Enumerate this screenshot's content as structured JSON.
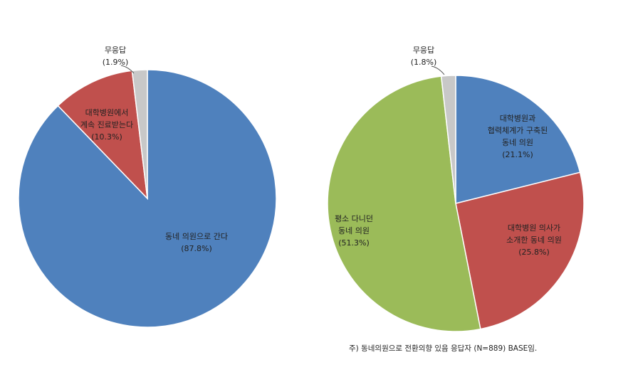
{
  "chart_data": [
    {
      "type": "pie",
      "slices": [
        {
          "label": [
            "동네 의원으로 간다",
            "(87.8%)"
          ],
          "value": 87.8,
          "color": "#4f81bd"
        },
        {
          "label": [
            "대학병원에서",
            "계속 진료받는다",
            "(10.3%)"
          ],
          "value": 10.3,
          "color": "#c0504d"
        },
        {
          "label": [
            "무응답",
            "(1.9%)"
          ],
          "value": 1.9,
          "color": "#c8c8c8"
        }
      ]
    },
    {
      "type": "pie",
      "slices": [
        {
          "label": [
            "대학병원과",
            "협력체계가 구축된",
            "동네 의원",
            "(21.1%)"
          ],
          "value": 21.1,
          "color": "#4f81bd"
        },
        {
          "label": [
            "대학병원 의사가",
            "소개한 동네 의원",
            "(25.8%)"
          ],
          "value": 25.8,
          "color": "#c0504d"
        },
        {
          "label": [
            "평소 다니던",
            "동네 의원",
            "(51.3%)"
          ],
          "value": 51.3,
          "color": "#9bbb59"
        },
        {
          "label": [
            "무응답",
            "(1.8%)"
          ],
          "value": 1.8,
          "color": "#c8c8c8"
        }
      ]
    }
  ],
  "footnote": "주) 동네의원으로 전환의향 있음 응답자 (N=889) BASE임."
}
